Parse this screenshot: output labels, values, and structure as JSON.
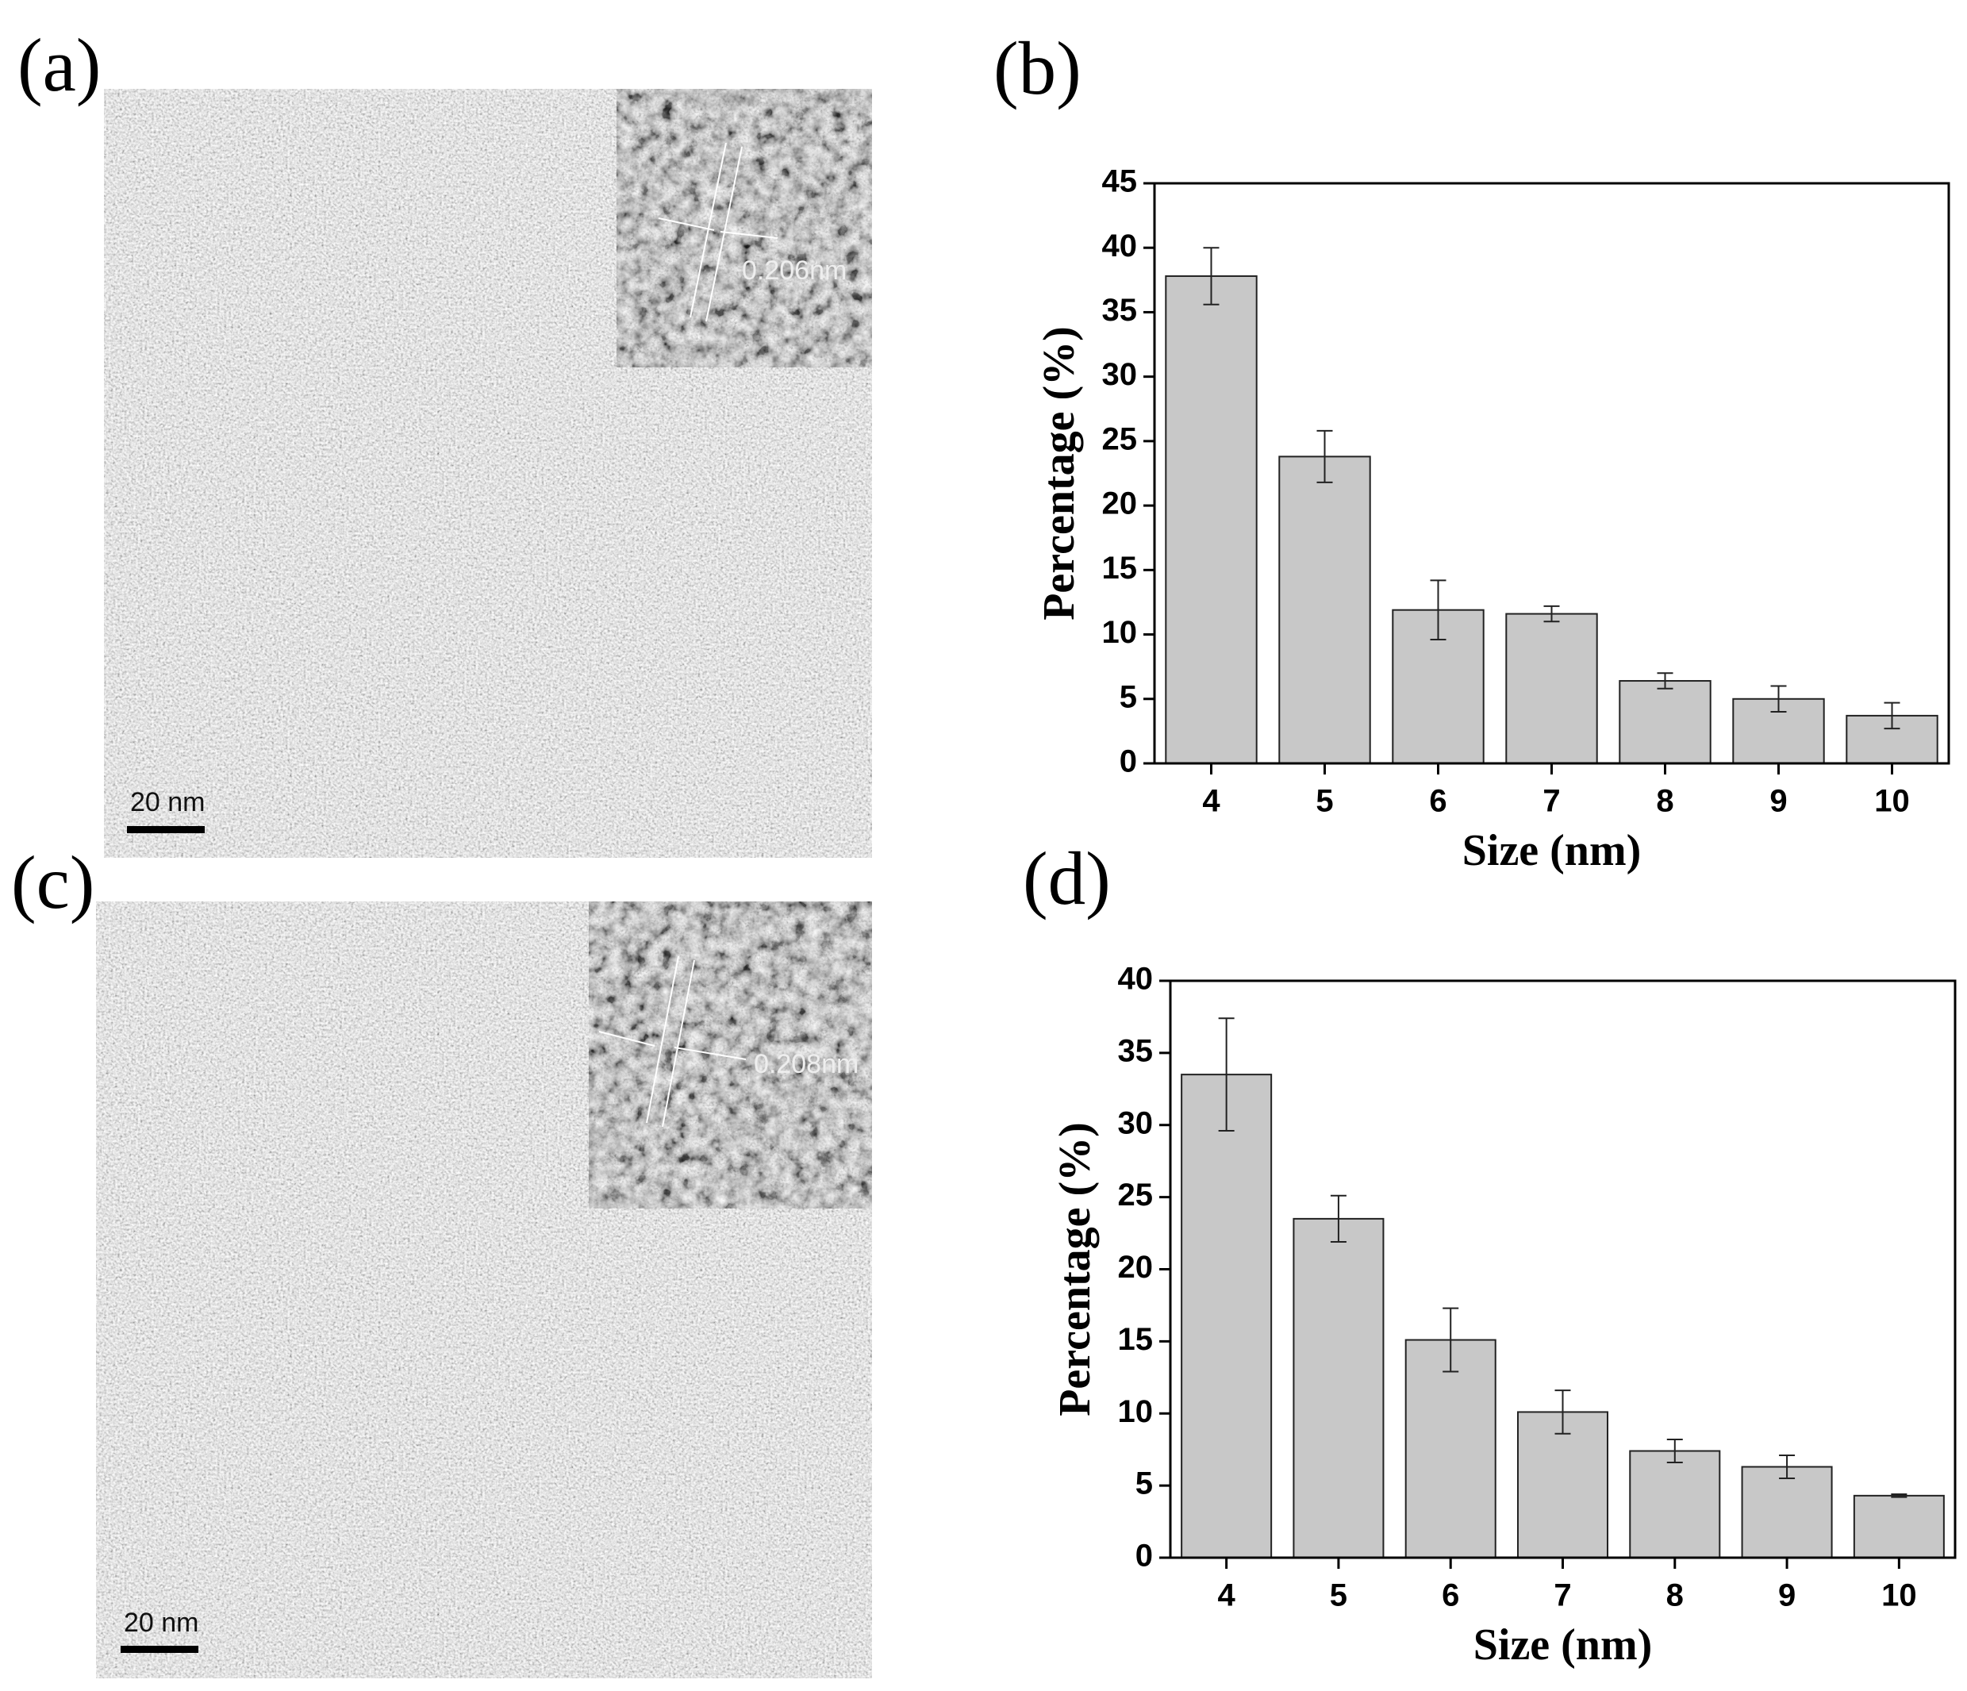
{
  "images": [
    {
      "panel_label": "(a)",
      "scale_bar": "20 nm",
      "inset_spacing": "0.206nm"
    },
    {
      "panel_label": "(c)",
      "scale_bar": "20 nm",
      "inset_spacing": "0.208nm"
    }
  ],
  "chart_data": [
    {
      "type": "bar",
      "panel_label": "(b)",
      "x_label": "Size (nm)",
      "y_label": "Percentage (%)",
      "categories": [
        "4",
        "5",
        "6",
        "7",
        "8",
        "9",
        "10"
      ],
      "values": [
        37.8,
        23.8,
        11.9,
        11.6,
        6.4,
        5.0,
        3.7
      ],
      "errors": [
        2.2,
        2.0,
        2.3,
        0.6,
        0.6,
        1.0,
        1.0
      ],
      "color": "#c8c8c8",
      "ylim": [
        0,
        45
      ],
      "yticks": [
        0,
        5,
        10,
        15,
        20,
        25,
        30,
        35,
        40,
        45
      ],
      "grid": false
    },
    {
      "type": "bar",
      "panel_label": "(d)",
      "x_label": "Size (nm)",
      "y_label": "Percentage (%)",
      "categories": [
        "4",
        "5",
        "6",
        "7",
        "8",
        "9",
        "10"
      ],
      "values": [
        33.5,
        23.5,
        15.1,
        10.1,
        7.4,
        6.3,
        4.3
      ],
      "errors": [
        3.9,
        1.6,
        2.2,
        1.5,
        0.8,
        0.8,
        0.1
      ],
      "color": "#c8c8c8",
      "ylim": [
        0,
        40
      ],
      "yticks": [
        0,
        5,
        10,
        15,
        20,
        25,
        30,
        35,
        40
      ],
      "grid": false
    }
  ]
}
